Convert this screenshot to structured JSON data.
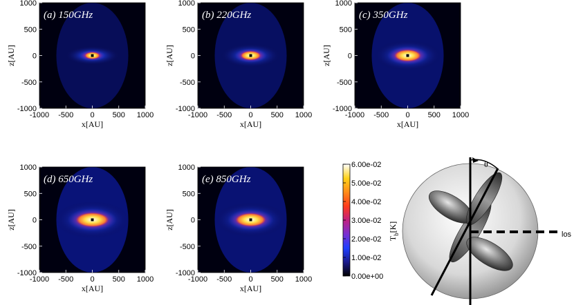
{
  "figure": {
    "panels": [
      {
        "id": "a",
        "title": "(a) 150GHz",
        "xlabel": "x[AU]",
        "ylabel": "z[AU]",
        "level": 0.25,
        "core": "#ffffff"
      },
      {
        "id": "b",
        "title": "(b) 220GHz",
        "xlabel": "x[AU]",
        "ylabel": "z[AU]",
        "level": 0.45,
        "core": "#ffffff"
      },
      {
        "id": "c",
        "title": "(c) 350GHz",
        "xlabel": "x[AU]",
        "ylabel": "z[AU]",
        "level": 0.7,
        "core": "#ffffff"
      },
      {
        "id": "d",
        "title": "(d) 650GHz",
        "xlabel": "x[AU]",
        "ylabel": "z[AU]",
        "level": 0.95,
        "core": "#ffffff"
      },
      {
        "id": "e",
        "title": "(e) 850GHz",
        "xlabel": "x[AU]",
        "ylabel": "z[AU]",
        "level": 0.85,
        "core": "#ffffff"
      }
    ],
    "ticks": [
      "-1000",
      "-500",
      "0",
      "500",
      "1000"
    ],
    "colorbar": {
      "title": "T",
      "title_sub": "b",
      "title_unit": "[K]",
      "tick_labels": [
        "6.00e-02",
        "5.00e-02",
        "4.00e-02",
        "3.00e-02",
        "2.00e-02",
        "1.00e-02",
        "0.00e+00"
      ],
      "range": [
        0.0,
        0.06
      ],
      "colors": [
        "#000000",
        "#1a1a8c",
        "#2040ff",
        "#7a2fd0",
        "#c02080",
        "#ff3b1a",
        "#ff8c1a",
        "#ffd21a",
        "#ffffff"
      ]
    },
    "diagram": {
      "angle_label": "θ",
      "los_label": "los"
    }
  }
}
